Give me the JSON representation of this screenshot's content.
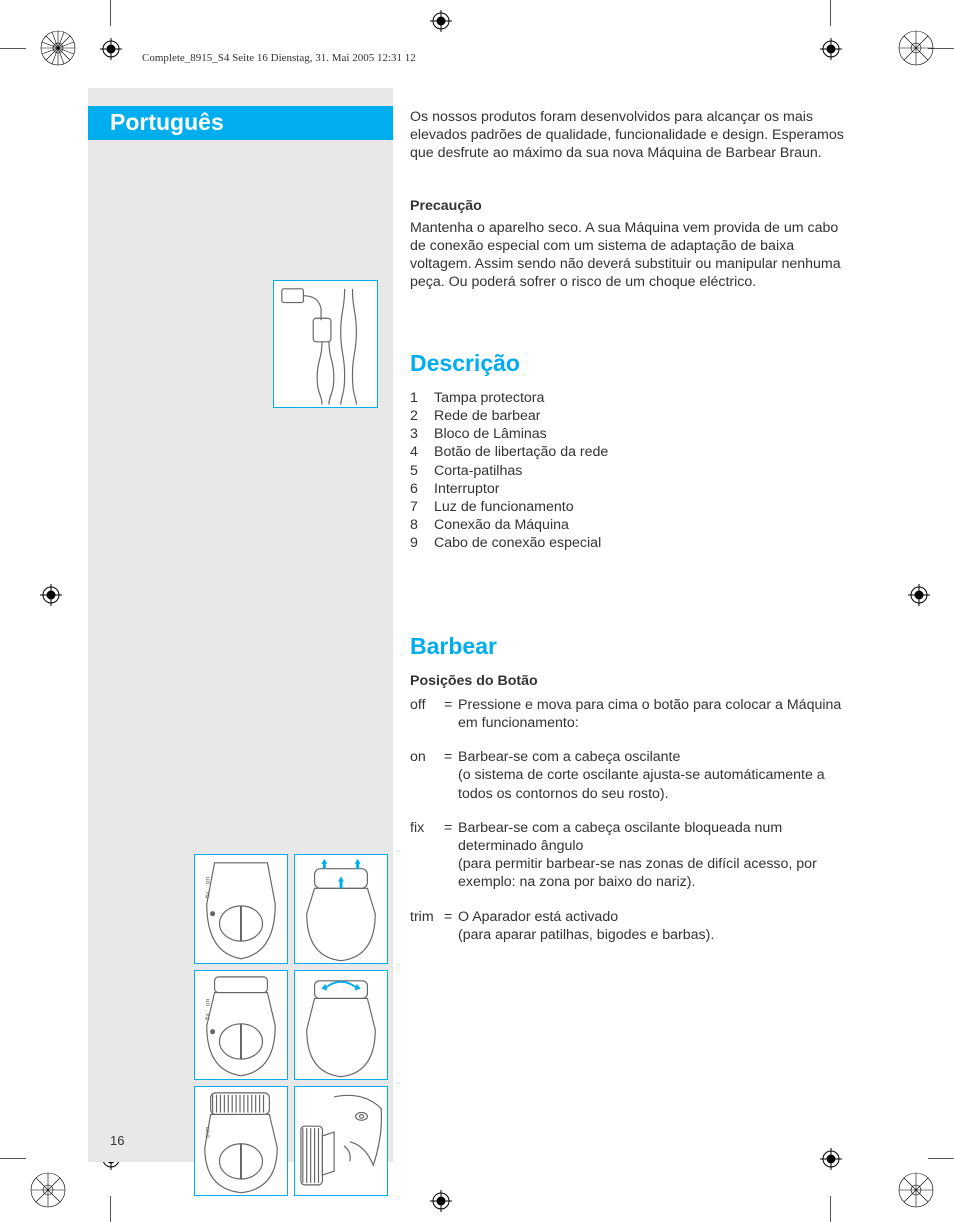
{
  "running_header": "Complete_8915_S4  Seite 16  Dienstag, 31. Mai 2005  12:31 12",
  "page_number": "16",
  "language_banner": "Português",
  "colors": {
    "accent": "#00aeef",
    "grey_col": "#e8e8e8",
    "text": "#333333",
    "white": "#ffffff"
  },
  "intro": "Os nossos produtos foram desenvolvidos para alcançar os mais elevados padrões de qualidade, funcionalidade e design. Esperamos que desfrute ao máximo da sua nova Máquina de Barbear Braun.",
  "caution": {
    "title": "Precaução",
    "body": "Mantenha o aparelho seco. A sua Máquina vem provida de um cabo de conexão especial com um sistema de adaptação de baixa voltagem. Assim sendo não deverá substituir ou manipular nenhuma peça. Ou poderá sofrer o risco de um choque eléctrico."
  },
  "description": {
    "heading": "Descrição",
    "items": [
      "Tampa protectora",
      "Rede de barbear",
      "Bloco de Lâminas",
      "Botão de libertação da rede",
      "Corta-patilhas",
      "Interruptor",
      "Luz de funcionamento",
      "Conexão da Máquina",
      "Cabo de conexão especial"
    ]
  },
  "shaving": {
    "heading": "Barbear",
    "subhead": "Posições do Botão",
    "rows": [
      {
        "key": "off",
        "eq": "=",
        "val": "Pressione e mova para cima o botão para colocar a Máquina em funcionamento:"
      },
      {
        "key": "on",
        "eq": "=",
        "val": "Barbear-se com a cabeça oscilante\n(o sistema de corte oscilante ajusta-se automáticamente a todos os contornos do seu rosto)."
      },
      {
        "key": "fix",
        "eq": "=",
        "val": "Barbear-se com a cabeça oscilante bloqueada num determinado ângulo\n(para permitir barbear-se nas zonas de difícil acesso, por exemplo: na zona por baixo do nariz)."
      },
      {
        "key": "trim",
        "eq": "=",
        "val": "O Aparador está activado\n(para aparar patilhas, bigodes e barbas)."
      }
    ]
  },
  "figure_labels": {
    "fix": "fix",
    "on": "on",
    "trim": "trim"
  }
}
